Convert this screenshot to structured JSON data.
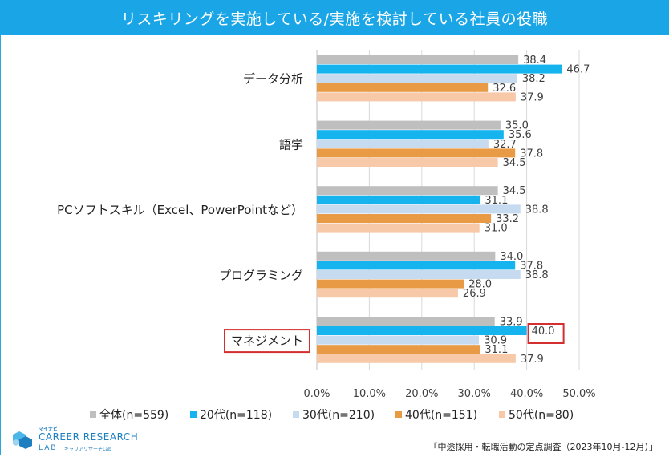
{
  "header": {
    "title": "リスキリングを実施している/実施を検討している社員の役職"
  },
  "chart_data": {
    "type": "bar",
    "orientation": "horizontal",
    "title": "リスキリングを実施している/実施を検討している社員の役職",
    "categories": [
      "データ分析",
      "語学",
      "PCソフトスキル（Excel、PowerPointなど）",
      "プログラミング",
      "マネジメント"
    ],
    "series": [
      {
        "name": "全体(n=559)",
        "color": "#bfbfbf",
        "values": [
          38.4,
          35.0,
          34.5,
          34.0,
          33.9
        ]
      },
      {
        "name": "20代(n=118)",
        "color": "#15b4ef",
        "values": [
          46.7,
          35.6,
          31.1,
          37.8,
          40.0
        ]
      },
      {
        "name": "30代(n=210)",
        "color": "#c6daf0",
        "values": [
          38.2,
          32.7,
          38.8,
          38.8,
          30.9
        ]
      },
      {
        "name": "40代(n=151)",
        "color": "#e89a45",
        "values": [
          32.6,
          37.8,
          33.2,
          28.0,
          31.1
        ]
      },
      {
        "name": "50代(n=80)",
        "color": "#f7c9a8",
        "values": [
          37.9,
          34.5,
          31.0,
          26.9,
          37.9
        ]
      }
    ],
    "x_ticks": [
      "0.0%",
      "10.0%",
      "20.0%",
      "30.0%",
      "40.0%",
      "50.0%"
    ],
    "xlim": [
      0,
      50
    ],
    "grid": true,
    "legend_position": "bottom",
    "highlight": {
      "category": "マネジメント",
      "series": "20代(n=118)",
      "color": "#d32f2f"
    }
  },
  "logo": {
    "kana": "マイナビ",
    "name": "CAREER RESEARCH",
    "lab": "LAB",
    "sub": "キャリアリサーチLab"
  },
  "source": "「中途採用・転職活動の定点調査（2023年10月-12月）」"
}
